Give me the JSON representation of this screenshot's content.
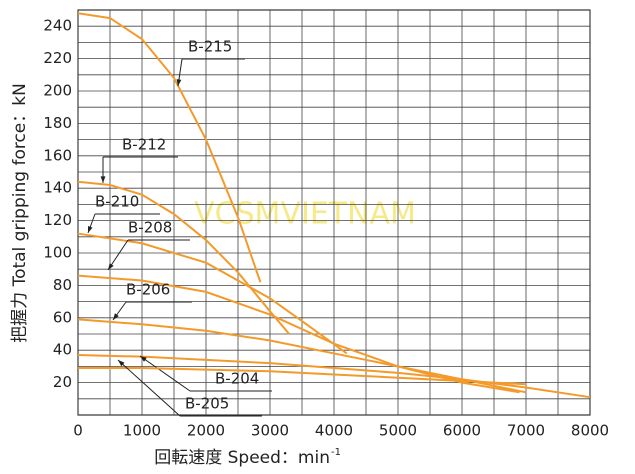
{
  "chart_data": {
    "type": "line",
    "y_label": "把握力  Total gripping force：kN",
    "x_label": "回転速度 Speed：min",
    "x_label_sup": "-1",
    "watermark": "VCSMVIETNAM",
    "xlim": [
      0,
      8000
    ],
    "xticks": [
      0,
      1000,
      2000,
      3000,
      4000,
      5000,
      6000,
      7000,
      8000
    ],
    "ylim": [
      0,
      250
    ],
    "yticks": [
      20,
      40,
      60,
      80,
      100,
      120,
      140,
      160,
      180,
      200,
      220,
      240
    ],
    "grid": true,
    "minor_grid": true,
    "series": [
      {
        "name": "B-215",
        "color": "#f39a2b",
        "x": [
          0,
          500,
          1000,
          1500,
          2000,
          2500,
          2850
        ],
        "values": [
          248,
          245,
          232,
          208,
          170,
          122,
          82
        ]
      },
      {
        "name": "B-212",
        "color": "#f39a2b",
        "x": [
          0,
          500,
          1000,
          1500,
          2000,
          2500,
          3000,
          3300
        ],
        "values": [
          144,
          142,
          136,
          124,
          108,
          88,
          64,
          50
        ]
      },
      {
        "name": "B-210",
        "color": "#f39a2b",
        "x": [
          0,
          1000,
          2000,
          3000,
          3500,
          4200
        ],
        "values": [
          112,
          106,
          94,
          72,
          58,
          38
        ]
      },
      {
        "name": "B-208",
        "color": "#f39a2b",
        "x": [
          0,
          1000,
          2000,
          3000,
          4000,
          5000,
          6000,
          6900
        ],
        "values": [
          86,
          83,
          76,
          62,
          44,
          30,
          20,
          14
        ]
      },
      {
        "name": "B-206",
        "color": "#f39a2b",
        "x": [
          0,
          1000,
          2000,
          3000,
          4000,
          5000,
          6000,
          7000
        ],
        "values": [
          59,
          56,
          52,
          46,
          38,
          30,
          22,
          14
        ]
      },
      {
        "name": "B-204",
        "color": "#f39a2b",
        "x": [
          0,
          1000,
          2000,
          3000,
          4000,
          5000,
          6000,
          7000,
          8000
        ],
        "values": [
          37,
          36,
          34,
          32,
          29,
          26,
          22,
          17,
          11
        ]
      },
      {
        "name": "B-205",
        "color": "#f39a2b",
        "x": [
          0,
          1000,
          2000,
          3000,
          4000,
          5000,
          6000,
          7000
        ],
        "values": [
          29,
          29,
          28,
          27,
          25,
          23,
          21,
          19
        ]
      }
    ]
  }
}
